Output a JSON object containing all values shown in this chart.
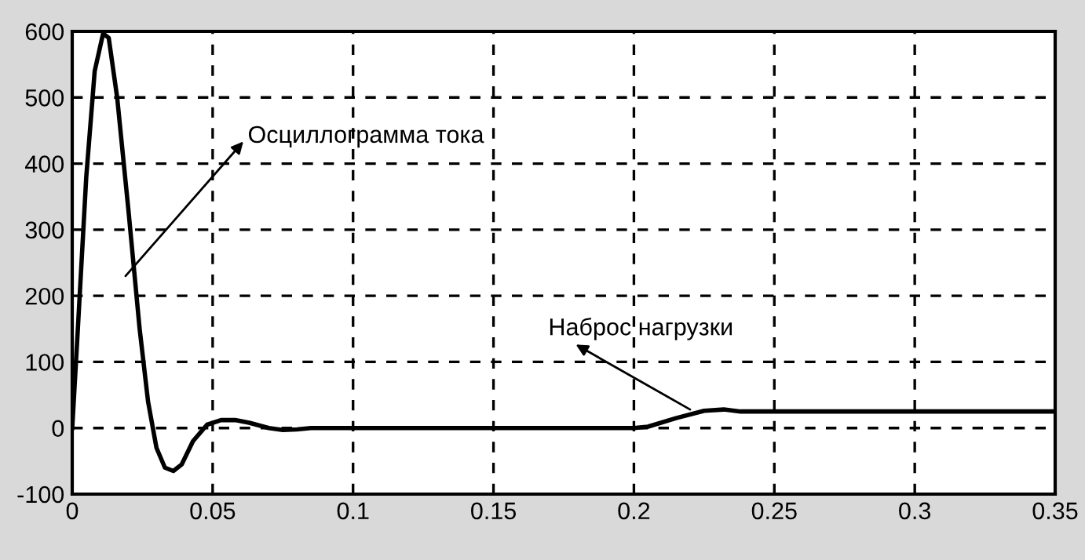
{
  "chart_data": {
    "type": "line",
    "x": [
      0,
      0.002,
      0.005,
      0.008,
      0.011,
      0.013,
      0.016,
      0.02,
      0.024,
      0.027,
      0.03,
      0.033,
      0.036,
      0.039,
      0.043,
      0.048,
      0.053,
      0.058,
      0.063,
      0.07,
      0.075,
      0.08,
      0.085,
      0.1,
      0.15,
      0.2,
      0.205,
      0.215,
      0.225,
      0.232,
      0.238,
      0.25,
      0.3,
      0.35
    ],
    "series": [
      {
        "color": "#000000",
        "values": [
          0,
          150,
          380,
          540,
          597,
          590,
          500,
          330,
          150,
          40,
          -30,
          -60,
          -65,
          -55,
          -20,
          5,
          12,
          12,
          8,
          0,
          -3,
          -2,
          0,
          0,
          0,
          0,
          2,
          15,
          26,
          28,
          25,
          25,
          25,
          25
        ]
      }
    ],
    "xlim": [
      0,
      0.35
    ],
    "xticks": [
      0,
      0.05,
      0.1,
      0.15,
      0.2,
      0.25,
      0.3,
      0.35
    ],
    "ylim": [
      -100,
      600
    ],
    "yticks": [
      -100,
      0,
      100,
      200,
      300,
      400,
      500,
      600
    ],
    "grid": true,
    "line_style": "solid",
    "marker": "none",
    "annotations": [
      {
        "text": "Осциллограмма тока",
        "x": 0.019,
        "y": 230
      },
      {
        "text": "Наброс нагрузки",
        "x": 0.22,
        "y": 28
      }
    ]
  }
}
